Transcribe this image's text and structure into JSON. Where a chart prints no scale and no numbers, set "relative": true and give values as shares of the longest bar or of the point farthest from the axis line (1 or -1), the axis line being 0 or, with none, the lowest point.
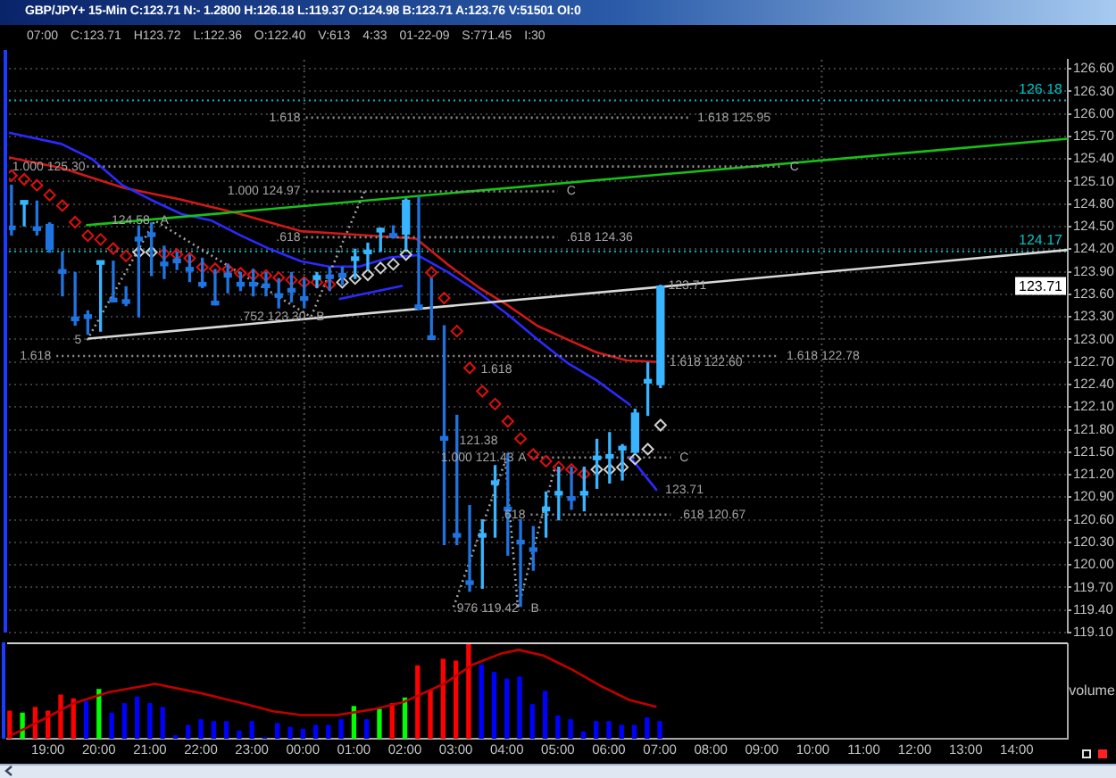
{
  "chart_data": [
    {
      "type": "candlestick",
      "title": "GBP/JPY+ 15-Min C:123.71 N:- 1.2800 H:126.18 L:119.37 O:124.98 B:123.71 A:123.76 V:51501 OI:0",
      "subtitle": "07:00 C:123.71 H123.72 L:122.36 O:122.40 V:613 4:33 01-22-09 S:771.45 I:30",
      "x": [
        "--01-21T18:15",
        "--01-21T18:30",
        "--01-21T18:45",
        "--01-21T19:00",
        "--01-21T19:15",
        "--01-21T19:30",
        "--01-21T19:45",
        "--01-21T20:00",
        "--01-21T20:15",
        "--01-21T20:30",
        "--01-21T20:45",
        "--01-21T21:00",
        "--01-21T21:15",
        "--01-21T21:30",
        "--01-21T21:45",
        "--01-21T22:00",
        "--01-21T22:15",
        "--01-21T22:30",
        "--01-21T22:45",
        "--01-21T23:00",
        "--01-21T23:15",
        "--01-21T23:30",
        "--01-21T23:45",
        "--01-22T00:00",
        "--01-22T00:15",
        "--01-22T00:30",
        "--01-22T00:45",
        "--01-22T01:00",
        "--01-22T01:15",
        "--01-22T01:30",
        "--01-22T01:45",
        "--01-22T02:00",
        "--01-22T02:15",
        "--01-22T02:30",
        "--01-22T02:45",
        "--01-22T03:00",
        "--01-22T03:15",
        "--01-22T03:30",
        "--01-22T03:45",
        "--01-22T04:00",
        "--01-22T04:15",
        "--01-22T04:30",
        "--01-22T04:45",
        "--01-22T05:00",
        "--01-22T05:15",
        "--01-22T05:30",
        "--01-22T05:45",
        "--01-22T06:00",
        "--01-22T06:15",
        "--01-22T06:30",
        "--01-22T06:45",
        "--01-22T07:00"
      ],
      "ohlc": [
        [
          124.5,
          125.05,
          124.39,
          124.46
        ],
        [
          124.8,
          124.84,
          124.51,
          124.83
        ],
        [
          124.49,
          124.84,
          124.39,
          124.45
        ],
        [
          124.53,
          124.55,
          124.16,
          124.2
        ],
        [
          123.92,
          124.16,
          123.58,
          123.88
        ],
        [
          123.29,
          123.89,
          123.19,
          123.25
        ],
        [
          123.32,
          123.38,
          123.07,
          123.28
        ],
        [
          124.0,
          124.04,
          123.11,
          124.03
        ],
        [
          123.54,
          124.04,
          123.5,
          123.5
        ],
        [
          123.52,
          123.7,
          123.45,
          123.48
        ],
        [
          124.36,
          124.51,
          123.3,
          124.31
        ],
        [
          124.41,
          124.55,
          123.85,
          124.37
        ],
        [
          124.02,
          124.24,
          123.81,
          123.98
        ],
        [
          124.06,
          124.16,
          123.93,
          124.02
        ],
        [
          123.95,
          124.12,
          123.77,
          123.91
        ],
        [
          123.75,
          124.08,
          123.69,
          123.71
        ],
        [
          123.5,
          123.93,
          123.46,
          123.46
        ],
        [
          123.87,
          124.0,
          123.62,
          123.83
        ],
        [
          123.75,
          123.89,
          123.65,
          123.71
        ],
        [
          123.75,
          123.93,
          123.58,
          123.71
        ],
        [
          123.73,
          123.89,
          123.58,
          123.69
        ],
        [
          123.6,
          123.81,
          123.42,
          123.56
        ],
        [
          123.67,
          123.89,
          123.5,
          123.63
        ],
        [
          123.56,
          123.81,
          123.42,
          123.52
        ],
        [
          123.8,
          123.89,
          123.69,
          123.84
        ],
        [
          123.85,
          123.96,
          123.65,
          123.81
        ],
        [
          123.87,
          123.96,
          123.73,
          123.83
        ],
        [
          124.05,
          124.2,
          123.81,
          124.09
        ],
        [
          124.14,
          124.28,
          123.93,
          124.18
        ],
        [
          124.43,
          124.48,
          124.17,
          124.47
        ],
        [
          124.4,
          124.51,
          124.35,
          124.36
        ],
        [
          124.4,
          124.87,
          124.2,
          124.85
        ],
        [
          123.44,
          124.89,
          123.4,
          123.41
        ],
        [
          123.04,
          123.81,
          123.0,
          123.0
        ],
        [
          121.7,
          123.18,
          120.27,
          121.66
        ],
        [
          120.41,
          121.99,
          120.27,
          120.37
        ],
        [
          119.78,
          120.79,
          119.65,
          119.74
        ],
        [
          120.37,
          120.6,
          119.69,
          120.41
        ],
        [
          121.07,
          121.32,
          120.37,
          121.11
        ],
        [
          120.76,
          121.48,
          120.13,
          120.72
        ],
        [
          120.32,
          120.6,
          119.45,
          120.28
        ],
        [
          120.22,
          120.51,
          119.93,
          120.18
        ],
        [
          120.72,
          120.97,
          120.37,
          120.76
        ],
        [
          120.93,
          121.3,
          120.6,
          120.97
        ],
        [
          120.9,
          121.3,
          120.74,
          120.86
        ],
        [
          120.93,
          121.3,
          120.72,
          120.97
        ],
        [
          121.4,
          121.67,
          121.02,
          121.44
        ],
        [
          121.42,
          121.76,
          121.09,
          121.46
        ],
        [
          121.53,
          121.6,
          121.13,
          121.57
        ],
        [
          121.5,
          122.07,
          121.48,
          122.02
        ],
        [
          122.42,
          122.69,
          121.99,
          122.46
        ],
        [
          122.4,
          123.72,
          122.36,
          123.71
        ]
      ],
      "colors": [
        "#1f74e0",
        "#39b4ff",
        "#1f74e0",
        "#1f74e0",
        "#1f74e0",
        "#1f74e0",
        "#1f74e0",
        "#39b4ff",
        "#1f74e0",
        "#1f74e0",
        "#1f74e0",
        "#1f74e0",
        "#1f74e0",
        "#1f74e0",
        "#1f74e0",
        "#1f74e0",
        "#1f74e0",
        "#1f74e0",
        "#1f74e0",
        "#1f74e0",
        "#1f74e0",
        "#1f74e0",
        "#1f74e0",
        "#1f74e0",
        "#39b4ff",
        "#1f74e0",
        "#1f74e0",
        "#39b4ff",
        "#39b4ff",
        "#39b4ff",
        "#1f74e0",
        "#39b4ff",
        "#1f74e0",
        "#1f74e0",
        "#1f74e0",
        "#1f74e0",
        "#1f74e0",
        "#39b4ff",
        "#39b4ff",
        "#1f74e0",
        "#1f74e0",
        "#1f74e0",
        "#39b4ff",
        "#39b4ff",
        "#1f74e0",
        "#39b4ff",
        "#39b4ff",
        "#39b4ff",
        "#39b4ff",
        "#39b4ff",
        "#39b4ff",
        "#39b4ff"
      ],
      "series": [
        {
          "type": "line",
          "color": "#d01818",
          "x": [
            "--01-21T18:12",
            "--01-21T19:14",
            "--01-21T20:26",
            "--01-21T21:35",
            "--01-21T22:44",
            "--01-21T23:56",
            "--01-22T01:05",
            "--01-22T02:12",
            "--01-22T02:50",
            "--01-22T03:26",
            "--01-22T03:59",
            "--01-22T04:35",
            "--01-22T05:10",
            "--01-22T05:44",
            "--01-22T06:20",
            "--01-22T07:00"
          ],
          "values": [
            125.42,
            125.28,
            125.02,
            124.86,
            124.67,
            124.44,
            124.39,
            124.34,
            123.99,
            123.69,
            123.46,
            123.18,
            123.0,
            122.83,
            122.72,
            122.7
          ]
        },
        {
          "type": "line",
          "color": "#2a2aff",
          "x": [
            "--01-21T18:12",
            "--01-21T19:14",
            "--01-21T19:50",
            "--01-21T20:26",
            "--01-21T20:59",
            "--01-21T21:35",
            "--01-21T22:11",
            "--01-21T22:44",
            "--01-21T23:20",
            "--01-21T23:56",
            "--01-22T00:29",
            "--01-22T01:05",
            "--01-22T01:41",
            "--01-22T02:14",
            "--01-22T02:50",
            "--01-22T03:26",
            "--01-22T03:59",
            "--01-22T04:35",
            "--01-22T05:10",
            "--01-22T05:44",
            "--01-22T06:24"
          ],
          "values": [
            125.75,
            125.6,
            125.4,
            125.05,
            124.86,
            124.67,
            124.58,
            124.39,
            124.2,
            124.04,
            123.97,
            123.97,
            124.09,
            124.12,
            123.89,
            123.62,
            123.34,
            123.0,
            122.69,
            122.46,
            122.13
          ]
        },
        {
          "type": "line",
          "color": "#18c018",
          "x": [
            "--01-21T19:44",
            "--01-22T15:00"
          ],
          "values": [
            124.52,
            125.67
          ]
        },
        {
          "type": "line",
          "color": "#d8d8d8",
          "x": [
            "--01-21T19:46",
            "--01-22T15:00"
          ],
          "values": [
            123.01,
            124.19
          ]
        },
        {
          "type": "line",
          "color": "#2a2aff",
          "x": [
            "--01-22T00:42",
            "--01-22T01:55"
          ],
          "values": [
            123.54,
            123.71
          ]
        },
        {
          "type": "line",
          "color": "#2a2aff",
          "x": [
            "--01-22T06:24",
            "--01-22T06:55"
          ],
          "values": [
            121.44,
            121.0
          ]
        },
        {
          "type": "line",
          "color": "#a0a0a0",
          "line_style": "dotted",
          "x": [
            "--01-21T19:44",
            "--01-21T21:04",
            "--01-22T00:08",
            "--01-22T01:11"
          ],
          "values": [
            122.99,
            124.58,
            123.3,
            124.97
          ]
        },
        {
          "type": "line",
          "color": "#a0a0a0",
          "line_style": "dotted",
          "x": [
            "--01-22T02:56",
            "--01-22T03:57",
            "--01-22T04:12",
            "--01-22T04:56"
          ],
          "values": [
            119.44,
            121.38,
            119.42,
            121.32
          ]
        },
        {
          "type": "line",
          "color": "#8c8c8c",
          "line_style": "dotted",
          "x": [
            "--01-22T00:02",
            "--01-22T07:33"
          ],
          "values": [
            125.95,
            125.95
          ]
        },
        {
          "type": "line",
          "color": "#8c8c8c",
          "line_style": "dotted",
          "x": [
            "--01-21T19:44",
            "--01-22T09:22"
          ],
          "values": [
            125.3,
            125.3
          ]
        },
        {
          "type": "line",
          "color": "#8c8c8c",
          "line_style": "dotted",
          "x": [
            "--01-22T00:02",
            "--01-22T04:59"
          ],
          "values": [
            124.97,
            124.97
          ]
        },
        {
          "type": "line",
          "color": "#8c8c8c",
          "line_style": "dotted",
          "x": [
            "--01-22T00:02",
            "--01-22T04:59"
          ],
          "values": [
            124.36,
            124.36
          ]
        },
        {
          "type": "line",
          "color": "#8c8c8c",
          "line_style": "dotted",
          "x": [
            "--01-21T19:08",
            "--01-22T09:18"
          ],
          "values": [
            122.78,
            122.78
          ]
        },
        {
          "type": "line",
          "color": "#8c8c8c",
          "line_style": "dotted",
          "x": [
            "--01-22T04:27",
            "--01-22T07:12"
          ],
          "values": [
            121.43,
            121.43
          ]
        },
        {
          "type": "line",
          "color": "#8c8c8c",
          "line_style": "dotted",
          "x": [
            "--01-22T04:27",
            "--01-22T07:12"
          ],
          "values": [
            120.67,
            120.67
          ]
        },
        {
          "type": "scatter",
          "marker": "diamond",
          "color": "#e01010",
          "values": [
            125.18,
            125.13,
            125.05,
            124.92,
            124.78,
            124.56,
            124.38,
            124.33,
            124.21,
            124.11,
            null,
            null,
            124.14,
            124.13,
            124.08,
            123.96,
            123.94,
            123.93,
            123.88,
            123.86,
            123.85,
            123.82,
            123.79,
            123.76,
            123.76,
            123.73,
            null,
            null,
            null,
            null,
            null,
            null,
            null,
            123.89,
            123.55,
            123.11,
            122.62,
            122.31,
            122.14,
            121.91,
            121.68,
            121.47,
            121.38,
            121.3,
            121.27,
            121.21,
            null,
            null,
            null,
            null,
            null,
            null
          ]
        },
        {
          "type": "scatter",
          "marker": "diamond",
          "color": "#d0d0d0",
          "values": [
            null,
            null,
            null,
            null,
            null,
            null,
            null,
            null,
            null,
            null,
            124.16,
            124.16,
            null,
            null,
            null,
            null,
            null,
            null,
            null,
            null,
            null,
            null,
            null,
            null,
            null,
            null,
            123.76,
            123.81,
            123.86,
            123.95,
            124.0,
            124.13,
            null,
            null,
            null,
            null,
            null,
            null,
            null,
            null,
            null,
            null,
            null,
            null,
            null,
            null,
            121.27,
            121.27,
            121.3,
            121.41,
            121.54,
            121.86
          ]
        }
      ],
      "xlim": [
        "--01-21T18:12",
        "--01-22T15:00"
      ],
      "ylim": [
        119.1,
        126.72
      ],
      "yticks": [
        {
          "value": 126.6,
          "label": "126.60"
        },
        {
          "value": 126.3,
          "label": "126.30"
        },
        {
          "value": 126.0,
          "label": "126.00"
        },
        {
          "value": 125.7,
          "label": "125.70"
        },
        {
          "value": 125.4,
          "label": "125.40"
        },
        {
          "value": 125.1,
          "label": "125.10"
        },
        {
          "value": 124.8,
          "label": "124.80"
        },
        {
          "value": 124.5,
          "label": "124.50"
        },
        {
          "value": 124.2,
          "label": "124.20"
        },
        {
          "value": 123.9,
          "label": "123.90"
        },
        {
          "value": 123.6,
          "label": "123.60"
        },
        {
          "value": 123.3,
          "label": "123.30"
        },
        {
          "value": 123.0,
          "label": "123.00"
        },
        {
          "value": 122.7,
          "label": "122.70"
        },
        {
          "value": 122.4,
          "label": "122.40"
        },
        {
          "value": 122.1,
          "label": "122.10"
        },
        {
          "value": 121.8,
          "label": "121.80"
        },
        {
          "value": 121.5,
          "label": "121.50"
        },
        {
          "value": 121.2,
          "label": "121.20"
        },
        {
          "value": 120.9,
          "label": "120.90"
        },
        {
          "value": 120.6,
          "label": "120.60"
        },
        {
          "value": 120.3,
          "label": "120.30"
        },
        {
          "value": 120.0,
          "label": "120.00"
        },
        {
          "value": 119.7,
          "label": "119.70"
        },
        {
          "value": 119.4,
          "label": "119.40"
        },
        {
          "value": 119.1,
          "label": "119.10"
        }
      ],
      "grid": "y",
      "tick_labels": "y",
      "ref_lines": [
        {
          "axis": "y",
          "value": 126.18,
          "label": "126.18",
          "color": "#00c0c0",
          "line_style": "dotted"
        },
        {
          "axis": "y",
          "value": 124.17,
          "label": "124.17",
          "color": "#00c0c0",
          "line_style": "dotted"
        },
        {
          "axis": "x",
          "value": "--01-22T00:00",
          "color": "#505050",
          "line_style": "dotted"
        },
        {
          "axis": "x",
          "value": "--01-22T10:10",
          "color": "#505050",
          "line_style": "dotted"
        }
      ],
      "annotations": [
        {
          "text": "1.618",
          "x": "--01-22T00:02",
          "y": 125.95
        },
        {
          "text": "1.618 125.95",
          "x": "--01-22T07:33",
          "y": 125.95
        },
        {
          "text": "1.000 125.30",
          "x": "--01-21T18:16",
          "y": 125.3
        },
        {
          "text": "C",
          "x": "--01-22T09:22",
          "y": 125.3
        },
        {
          "text": "124.58",
          "x": "--01-21T20:13",
          "y": 124.58
        },
        {
          "text": "A",
          "x": "--01-21T21:04",
          "y": 124.58
        },
        {
          "text": "1.000 124.97",
          "x": "--01-22T00:02",
          "y": 124.97
        },
        {
          "text": "C",
          "x": "--01-22T04:59",
          "y": 124.97
        },
        {
          "text": ".618",
          "x": "--01-22T00:02",
          "y": 124.36
        },
        {
          "text": ".618 124.36",
          "x": "--01-22T04:59",
          "y": 124.36
        },
        {
          "text": "5",
          "x": "--01-21T19:44",
          "y": 122.99
        },
        {
          "text": ".752 123.30",
          "x": "--01-21T22:44",
          "y": 123.3
        },
        {
          "text": "B",
          "x": "--01-22T00:08",
          "y": 123.3
        },
        {
          "text": "1.618",
          "x": "--01-21T19:08",
          "y": 122.78
        },
        {
          "text": "1.618 122.78",
          "x": "--01-22T09:18",
          "y": 122.78
        },
        {
          "text": "1.618",
          "x": "--01-22T03:28",
          "y": 122.6
        },
        {
          "text": "1.618 122.60",
          "x": "--01-22T07:00",
          "y": 122.7
        },
        {
          "text": "1.000 121.43",
          "x": "--01-22T02:41",
          "y": 121.43
        },
        {
          "text": "121.38",
          "x": "--01-22T03:03",
          "y": 121.65
        },
        {
          "text": "A",
          "x": "--01-22T04:12",
          "y": 121.43
        },
        {
          "text": "C",
          "x": "--01-22T07:12",
          "y": 121.43
        },
        {
          "text": ".618",
          "x": "--01-22T04:27",
          "y": 120.67
        },
        {
          "text": ".618 120.67",
          "x": "--01-22T07:12",
          "y": 120.67
        },
        {
          "text": ".976 119.42",
          "x": "--01-22T02:56",
          "y": 119.42
        },
        {
          "text": "B",
          "x": "--01-22T04:27",
          "y": 119.42
        },
        {
          "text": "123.71",
          "x": "--01-22T07:09",
          "y": 123.71
        },
        {
          "text": "123.71",
          "x": "--01-22T06:55",
          "y": 121.0
        },
        "123.71"
      ]
    },
    {
      "type": "bar",
      "relative": true,
      "ylabel": "volume",
      "x": [
        "--01-21T18:15",
        "--01-21T18:30",
        "--01-21T18:45",
        "--01-21T19:00",
        "--01-21T19:15",
        "--01-21T19:30",
        "--01-21T19:45",
        "--01-21T20:00",
        "--01-21T20:15",
        "--01-21T20:30",
        "--01-21T20:45",
        "--01-21T21:00",
        "--01-21T21:15",
        "--01-21T21:30",
        "--01-21T21:45",
        "--01-21T22:00",
        "--01-21T22:15",
        "--01-21T22:30",
        "--01-21T22:45",
        "--01-21T23:00",
        "--01-21T23:15",
        "--01-21T23:30",
        "--01-21T23:45",
        "--01-22T00:00",
        "--01-22T00:15",
        "--01-22T00:30",
        "--01-22T00:45",
        "--01-22T01:00",
        "--01-22T01:15",
        "--01-22T01:30",
        "--01-22T01:45",
        "--01-22T02:00",
        "--01-22T02:15",
        "--01-22T02:30",
        "--01-22T02:45",
        "--01-22T03:00",
        "--01-22T03:15",
        "--01-22T03:30",
        "--01-22T03:45",
        "--01-22T04:00",
        "--01-22T04:15",
        "--01-22T04:30",
        "--01-22T04:45",
        "--01-22T05:00",
        "--01-22T05:15",
        "--01-22T05:30",
        "--01-22T05:45",
        "--01-22T06:00",
        "--01-22T06:15",
        "--01-22T06:30",
        "--01-22T06:45",
        "--01-22T07:00"
      ],
      "series": [
        {
          "values": [
            0.29,
            0.27,
            0.33,
            0.29,
            0.46,
            0.42,
            0.39,
            0.52,
            0.27,
            0.37,
            0.44,
            0.37,
            0.33,
            0.03,
            0.14,
            0.2,
            0.18,
            0.18,
            0.08,
            0.18,
            0.01,
            0.16,
            0.12,
            0.1,
            0.14,
            0.14,
            0.2,
            0.34,
            0.2,
            0.31,
            0.37,
            0.43,
            0.77,
            0.51,
            0.84,
            0.82,
            1,
            0.78,
            0.7,
            0.63,
            0.65,
            0.36,
            0.5,
            0.24,
            0.2,
            0.07,
            0.18,
            0.18,
            0.14,
            0.14,
            0.22,
            0.18
          ],
          "colors": [
            "#ff0000",
            "#00ff00",
            "#ff0000",
            "#ff0000",
            "#ff0000",
            "#ff0000",
            "#0000ff",
            "#00ff00",
            "#0000ff",
            "#0000ff",
            "#0000ff",
            "#0000ff",
            "#0000ff",
            "#0000ff",
            "#0000ff",
            "#0000ff",
            "#0000ff",
            "#0000ff",
            "#0000ff",
            "#0000ff",
            "#0000ff",
            "#0000ff",
            "#0000ff",
            "#0000ff",
            "#0000ff",
            "#0000ff",
            "#0000ff",
            "#00ff00",
            "#0000ff",
            "#00ff00",
            "#ff0000",
            "#00ff00",
            "#ff0000",
            "#ff0000",
            "#ff0000",
            "#ff0000",
            "#ff0000",
            "#0000ff",
            "#0000ff",
            "#0000ff",
            "#0000ff",
            "#0000ff",
            "#0000ff",
            "#0000ff",
            "#0000ff",
            "#0000ff",
            "#0000ff",
            "#0000ff",
            "#0000ff",
            "#0000ff",
            "#0000ff",
            "#0000ff"
          ]
        },
        {
          "type": "line",
          "color": "#c00000",
          "x": [
            "--01-21T18:15",
            "--01-21T18:47",
            "--01-21T19:29",
            "--01-21T20:11",
            "--01-21T21:06",
            "--01-21T22:01",
            "--01-21T22:51",
            "--01-21T23:25",
            "--01-21T23:58",
            "--01-22T00:40",
            "--01-22T01:22",
            "--01-22T01:59",
            "--01-22T02:46",
            "--01-22T03:19",
            "--01-22T03:53",
            "--01-22T04:14",
            "--01-22T04:43",
            "--01-22T05:17",
            "--01-22T05:50",
            "--01-22T06:24",
            "--01-22T06:55"
          ],
          "values": [
            0.03,
            0.17,
            0.37,
            0.49,
            0.58,
            0.48,
            0.37,
            0.29,
            0.25,
            0.25,
            0.31,
            0.39,
            0.58,
            0.78,
            0.9,
            0.94,
            0.88,
            0.73,
            0.56,
            0.41,
            0.34
          ]
        }
      ],
      "xlim": [
        "--01-21T18:12",
        "--01-22T15:00"
      ],
      "xticks": [
        {
          "value": "--01-21T19:00",
          "label": "19:00"
        },
        {
          "value": "--01-21T20:00",
          "label": "20:00"
        },
        {
          "value": "--01-21T21:00",
          "label": "21:00"
        },
        {
          "value": "--01-21T22:00",
          "label": "22:00"
        },
        {
          "value": "--01-21T23:00",
          "label": "23:00"
        },
        {
          "value": "--01-22T00:00",
          "label": "00:00"
        },
        {
          "value": "--01-22T01:00",
          "label": "01:00"
        },
        {
          "value": "--01-22T02:00",
          "label": "02:00"
        },
        {
          "value": "--01-22T03:00",
          "label": "03:00"
        },
        {
          "value": "--01-22T04:00",
          "label": "04:00"
        },
        {
          "value": "--01-22T05:00",
          "label": "05:00"
        },
        {
          "value": "--01-22T06:00",
          "label": "06:00"
        },
        {
          "value": "--01-22T07:00",
          "label": "07:00"
        },
        {
          "value": "--01-22T08:00",
          "label": "08:00"
        },
        {
          "value": "--01-22T09:00",
          "label": "09:00"
        },
        {
          "value": "--01-22T10:00",
          "label": "10:00"
        },
        {
          "value": "--01-22T11:00",
          "label": "11:00"
        },
        {
          "value": "--01-22T12:00",
          "label": "12:00"
        },
        {
          "value": "--01-22T13:00",
          "label": "13:00"
        },
        {
          "value": "--01-22T14:00",
          "label": "14:00"
        }
      ],
      "tick_labels": "x"
    }
  ]
}
